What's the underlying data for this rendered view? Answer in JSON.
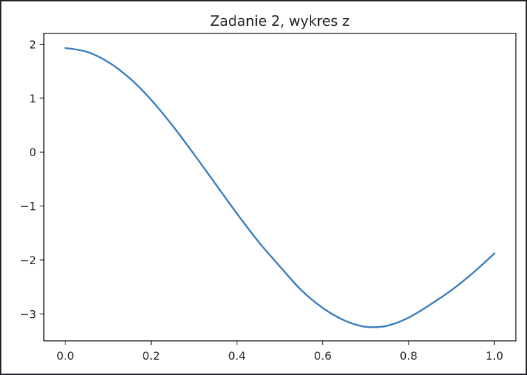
{
  "chart_data": {
    "type": "line",
    "title": "Zadanie 2, wykres z",
    "xlabel": "",
    "ylabel": "",
    "xlim": [
      -0.05,
      1.05
    ],
    "ylim": [
      -3.5,
      2.2
    ],
    "x_ticks": [
      0.0,
      0.2,
      0.4,
      0.6,
      0.8,
      1.0
    ],
    "x_tick_labels": [
      "0.0",
      "0.2",
      "0.4",
      "0.6",
      "0.8",
      "1.0"
    ],
    "y_ticks": [
      2,
      1,
      0,
      -1,
      -2,
      -3
    ],
    "y_tick_labels": [
      "2",
      "1",
      "0",
      "−1",
      "−2",
      "−3"
    ],
    "grid": false,
    "series": [
      {
        "color": "#3a7ebf",
        "x": [
          0.0,
          0.05,
          0.1,
          0.15,
          0.2,
          0.25,
          0.3,
          0.35,
          0.4,
          0.45,
          0.5,
          0.55,
          0.6,
          0.65,
          0.7,
          0.75,
          0.8,
          0.85,
          0.9,
          0.95,
          1.0
        ],
        "y": [
          1.93,
          1.86,
          1.67,
          1.37,
          0.97,
          0.49,
          -0.04,
          -0.59,
          -1.14,
          -1.66,
          -2.12,
          -2.56,
          -2.89,
          -3.12,
          -3.24,
          -3.22,
          -3.07,
          -2.83,
          -2.56,
          -2.24,
          -1.88
        ]
      }
    ]
  }
}
